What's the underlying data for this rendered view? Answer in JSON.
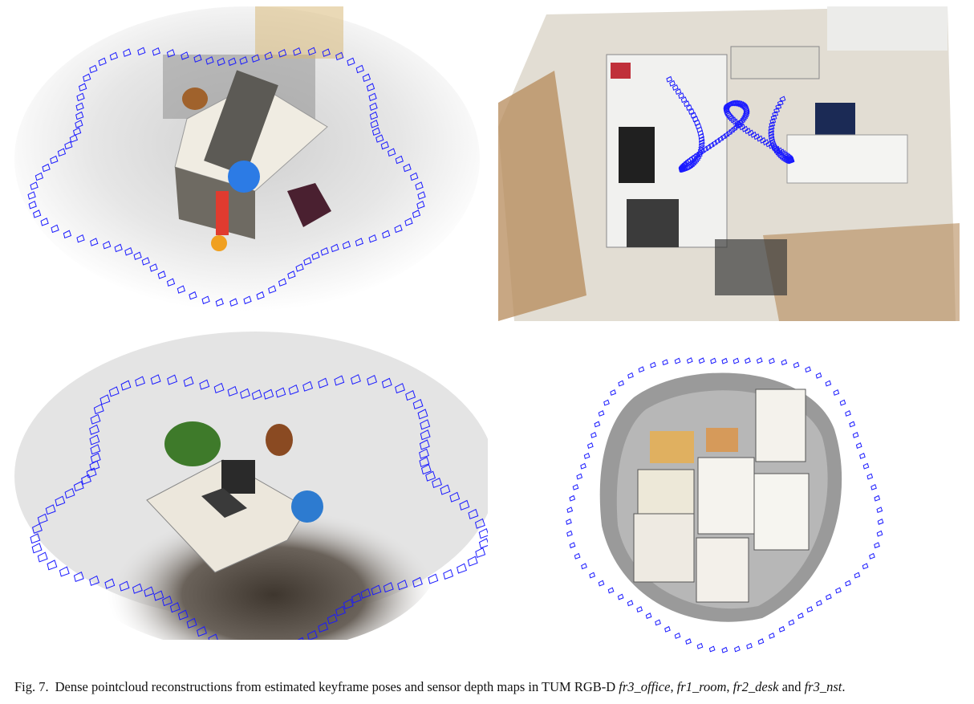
{
  "figure": {
    "label": "Fig. 7.",
    "caption_text": "Dense pointcloud reconstructions from estimated keyframe poses and sensor depth maps in TUM RGB-D",
    "datasets": [
      "fr3_office",
      "fr1_room",
      "fr2_desk",
      "fr3_nst"
    ],
    "sep_comma_1": ", ",
    "sep_comma_2": ", ",
    "sep_and": " and ",
    "end": "."
  },
  "panels": [
    {
      "id": "fr3_office",
      "view": "oblique view of office desk with keyframe trajectory loop"
    },
    {
      "id": "fr1_room",
      "view": "top-down view of room with keyframe trajectory"
    },
    {
      "id": "fr2_desk",
      "view": "oblique view of desk with keyframe trajectory loop"
    },
    {
      "id": "fr3_nst",
      "view": "top-down view of textured posters with circular keyframe trajectory"
    }
  ],
  "colors": {
    "keyframe": "#1a1aff",
    "pointcloud_light": "#e8e8e8",
    "pointcloud_mid": "#b9b9b9",
    "shadow": "#5a5048",
    "floor_wood": "#b58a5a",
    "caption_text": "#111111"
  }
}
